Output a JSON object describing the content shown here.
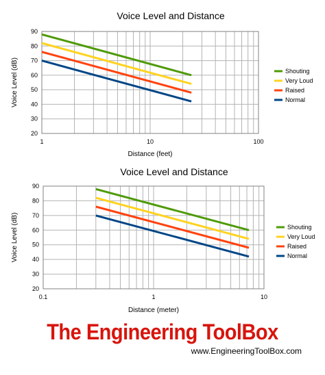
{
  "chart_data": [
    {
      "type": "line",
      "title": "Voice Level and Distance",
      "xlabel": "Distance (feet)",
      "ylabel": "Voice Level (dB)",
      "xscale": "log",
      "xlim": [
        1,
        100
      ],
      "ylim": [
        20,
        90
      ],
      "x_ticks": [
        "1",
        "10",
        "100"
      ],
      "y_ticks": [
        "20",
        "30",
        "40",
        "50",
        "60",
        "70",
        "80",
        "90"
      ],
      "grid": true,
      "legend": "right",
      "series": [
        {
          "name": "Shouting",
          "color": "#4e9a06",
          "x": [
            1,
            24
          ],
          "y": [
            88,
            60
          ]
        },
        {
          "name": "Very Loud",
          "color": "#ffd320",
          "x": [
            1,
            24
          ],
          "y": [
            82,
            54
          ]
        },
        {
          "name": "Raised",
          "color": "#ff420e",
          "x": [
            1,
            24
          ],
          "y": [
            76,
            48
          ]
        },
        {
          "name": "Normal",
          "color": "#004586",
          "x": [
            1,
            24
          ],
          "y": [
            70,
            42
          ]
        }
      ]
    },
    {
      "type": "line",
      "title": "Voice Level and Distance",
      "xlabel": "Distance (meter)",
      "ylabel": "Voice Level (dB)",
      "xscale": "log",
      "xlim": [
        0.1,
        10
      ],
      "ylim": [
        20,
        90
      ],
      "x_ticks": [
        "0.1",
        "1",
        "10"
      ],
      "y_ticks": [
        "20",
        "30",
        "40",
        "50",
        "60",
        "70",
        "80",
        "90"
      ],
      "grid": true,
      "legend": "right",
      "series": [
        {
          "name": "Shouting",
          "color": "#4e9a06",
          "x": [
            0.3,
            7.3
          ],
          "y": [
            88,
            60
          ]
        },
        {
          "name": "Very Loud",
          "color": "#ffd320",
          "x": [
            0.3,
            7.3
          ],
          "y": [
            82,
            54
          ]
        },
        {
          "name": "Raised",
          "color": "#ff420e",
          "x": [
            0.3,
            7.3
          ],
          "y": [
            76,
            48
          ]
        },
        {
          "name": "Normal",
          "color": "#004586",
          "x": [
            0.3,
            7.3
          ],
          "y": [
            70,
            42
          ]
        }
      ]
    }
  ],
  "branding": {
    "title": "The Engineering ToolBox",
    "url": "www.EngineeringToolBox.com"
  }
}
